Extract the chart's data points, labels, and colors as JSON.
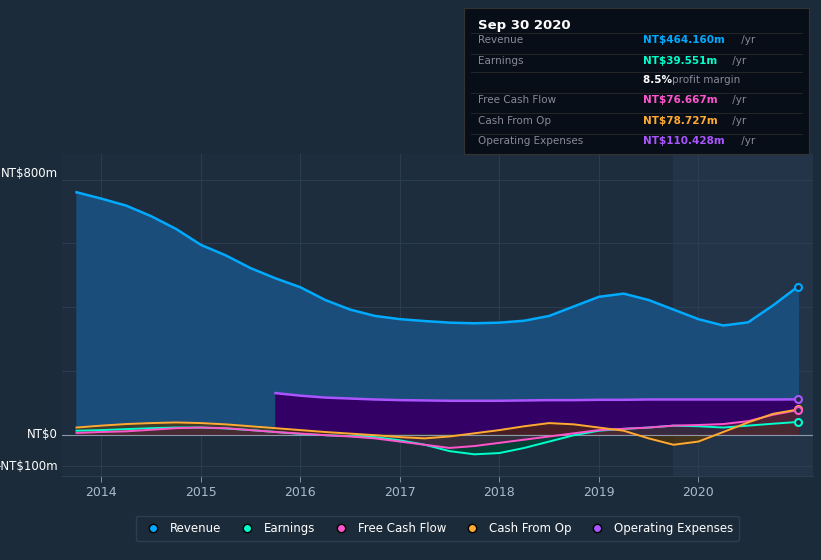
{
  "bg_color": "#1c2b3a",
  "plot_bg_color": "#1e2d3d",
  "highlight_bg": "#243448",
  "title_text": "Sep 30 2020",
  "info_rows": [
    {
      "label": "Revenue",
      "value": "NT$464.160m",
      "value_color": "#00aaff"
    },
    {
      "label": "Earnings",
      "value": "NT$39.551m",
      "value_color": "#00ffcc"
    },
    {
      "label": "",
      "value": "8.5% profit margin",
      "value_color": "#bbbbbb",
      "bold_prefix": "8.5%"
    },
    {
      "label": "Free Cash Flow",
      "value": "NT$76.667m",
      "value_color": "#ff55cc"
    },
    {
      "label": "Cash From Op",
      "value": "NT$78.727m",
      "value_color": "#ffaa33"
    },
    {
      "label": "Operating Expenses",
      "value": "NT$110.428m",
      "value_color": "#aa55ff"
    }
  ],
  "ylabel_800": "NT$800m",
  "ylabel_0": "NT$0",
  "ylabel_neg100": "-NT$100m",
  "ylim": [
    -130,
    880
  ],
  "xlim_start": 2013.6,
  "xlim_end": 2021.15,
  "xticks": [
    2014,
    2015,
    2016,
    2017,
    2018,
    2019,
    2020
  ],
  "grid_color": "#2d3f52",
  "highlight_start": 2019.75,
  "highlight_end": 2021.2,
  "revenue_color": "#00aaff",
  "revenue_fill": "#1a4d7a",
  "earnings_color": "#00ffcc",
  "earnings_fill": "#004433",
  "fcf_color": "#ff55cc",
  "fcf_fill": "#552244",
  "cashfromop_color": "#ffaa33",
  "cashfromop_fill": "#553300",
  "opex_color": "#aa55ff",
  "opex_fill": "#330066",
  "revenue_x": [
    2013.75,
    2014.0,
    2014.25,
    2014.5,
    2014.75,
    2015.0,
    2015.25,
    2015.5,
    2015.75,
    2016.0,
    2016.25,
    2016.5,
    2016.75,
    2017.0,
    2017.25,
    2017.5,
    2017.75,
    2018.0,
    2018.25,
    2018.5,
    2018.75,
    2019.0,
    2019.25,
    2019.5,
    2019.75,
    2020.0,
    2020.25,
    2020.5,
    2020.75,
    2021.0
  ],
  "revenue_y": [
    760,
    740,
    718,
    685,
    645,
    595,
    562,
    522,
    490,
    462,
    422,
    392,
    372,
    362,
    356,
    351,
    349,
    351,
    357,
    372,
    402,
    432,
    442,
    422,
    392,
    362,
    342,
    352,
    405,
    464
  ],
  "earnings_x": [
    2013.75,
    2014.0,
    2014.25,
    2014.5,
    2014.75,
    2015.0,
    2015.25,
    2015.5,
    2015.75,
    2016.0,
    2016.25,
    2016.5,
    2016.75,
    2017.0,
    2017.25,
    2017.5,
    2017.75,
    2018.0,
    2018.25,
    2018.5,
    2018.75,
    2019.0,
    2019.25,
    2019.5,
    2019.75,
    2020.0,
    2020.25,
    2020.5,
    2020.75,
    2021.0
  ],
  "earnings_y": [
    12,
    14,
    17,
    20,
    22,
    22,
    19,
    14,
    8,
    2,
    -2,
    -5,
    -8,
    -18,
    -32,
    -52,
    -62,
    -58,
    -42,
    -22,
    -2,
    12,
    18,
    22,
    28,
    26,
    22,
    28,
    34,
    39.5
  ],
  "fcf_x": [
    2013.75,
    2014.0,
    2014.25,
    2014.5,
    2014.75,
    2015.0,
    2015.25,
    2015.5,
    2015.75,
    2016.0,
    2016.25,
    2016.5,
    2016.75,
    2017.0,
    2017.25,
    2017.5,
    2017.75,
    2018.0,
    2018.25,
    2018.5,
    2018.75,
    2019.0,
    2019.25,
    2019.5,
    2019.75,
    2020.0,
    2020.25,
    2020.5,
    2020.75,
    2021.0
  ],
  "fcf_y": [
    5,
    8,
    10,
    15,
    20,
    22,
    20,
    14,
    8,
    3,
    -2,
    -6,
    -12,
    -22,
    -32,
    -42,
    -36,
    -26,
    -16,
    -6,
    4,
    14,
    18,
    22,
    28,
    30,
    33,
    42,
    62,
    76.7
  ],
  "cop_x": [
    2013.75,
    2014.0,
    2014.25,
    2014.5,
    2014.75,
    2015.0,
    2015.25,
    2015.5,
    2015.75,
    2016.0,
    2016.25,
    2016.5,
    2016.75,
    2017.0,
    2017.25,
    2017.5,
    2017.75,
    2018.0,
    2018.25,
    2018.5,
    2018.75,
    2019.0,
    2019.25,
    2019.5,
    2019.75,
    2020.0,
    2020.25,
    2020.5,
    2020.75,
    2021.0
  ],
  "cop_y": [
    22,
    28,
    33,
    36,
    38,
    36,
    32,
    26,
    20,
    14,
    8,
    3,
    -2,
    -8,
    -12,
    -6,
    4,
    14,
    26,
    36,
    32,
    22,
    12,
    -12,
    -32,
    -22,
    8,
    38,
    65,
    78.7
  ],
  "opex_x": [
    2015.75,
    2016.0,
    2016.25,
    2016.5,
    2016.75,
    2017.0,
    2017.25,
    2017.5,
    2017.75,
    2018.0,
    2018.25,
    2018.5,
    2018.75,
    2019.0,
    2019.25,
    2019.5,
    2019.75,
    2020.0,
    2020.25,
    2020.5,
    2020.75,
    2021.0
  ],
  "opex_y": [
    130,
    122,
    116,
    113,
    110,
    108,
    107,
    106,
    106,
    106,
    107,
    108,
    108,
    109,
    109,
    110,
    110,
    110,
    110,
    110,
    110,
    110.4
  ],
  "legend_items": [
    {
      "label": "Revenue",
      "color": "#00aaff"
    },
    {
      "label": "Earnings",
      "color": "#00ffcc"
    },
    {
      "label": "Free Cash Flow",
      "color": "#ff55cc"
    },
    {
      "label": "Cash From Op",
      "color": "#ffaa33"
    },
    {
      "label": "Operating Expenses",
      "color": "#aa55ff"
    }
  ]
}
